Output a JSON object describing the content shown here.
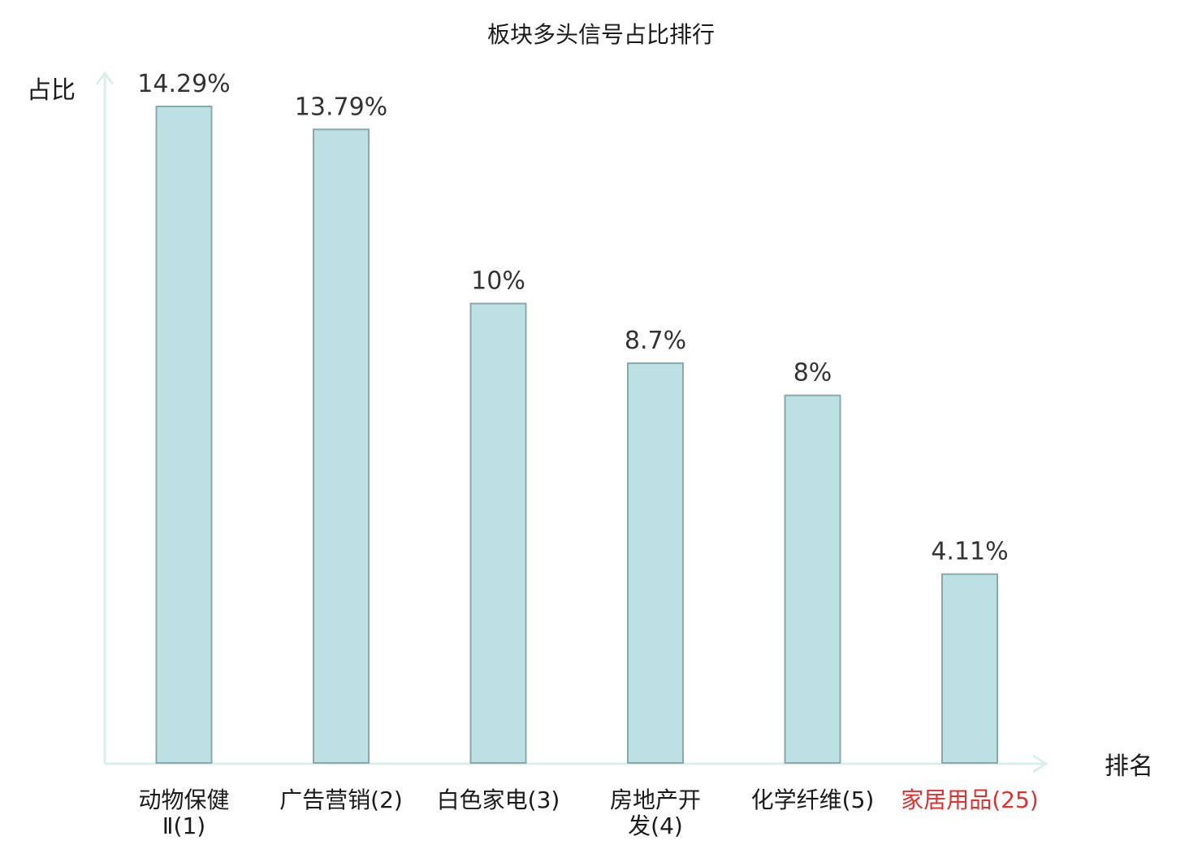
{
  "chart_data": {
    "type": "bar",
    "title": "板块多头信号占比排行",
    "ylabel": "占比",
    "xlabel": "排名",
    "categories": [
      {
        "name": "动物保健Ⅱ",
        "rank": "(1)",
        "highlight": false,
        "lines": [
          "动物保健",
          "Ⅱ(1)"
        ]
      },
      {
        "name": "广告营销",
        "rank": "(2)",
        "highlight": false,
        "lines": [
          "广告营销(2)"
        ]
      },
      {
        "name": "白色家电",
        "rank": "(3)",
        "highlight": false,
        "lines": [
          "白色家电(3)"
        ]
      },
      {
        "name": "房地产开发",
        "rank": "(4)",
        "highlight": false,
        "lines": [
          "房地产开",
          "发(4)"
        ]
      },
      {
        "name": "化学纤维",
        "rank": "(5)",
        "highlight": false,
        "lines": [
          "化学纤维(5)"
        ]
      },
      {
        "name": "家居用品",
        "rank": "(25)",
        "highlight": true,
        "lines": [
          "家居用品(25)"
        ]
      }
    ],
    "values": [
      14.29,
      13.79,
      10,
      8.7,
      8,
      4.11
    ],
    "value_labels": [
      "14.29%",
      "13.79%",
      "10%",
      "8.7%",
      "8%",
      "4.11%"
    ],
    "ylim": [
      0,
      14.8
    ],
    "grid": false,
    "colors": {
      "bar_fill": "#bde0e3",
      "bar_stroke": "#8aa8ab",
      "axis": "#d9efeb",
      "highlight_text": "#e03030",
      "text": "#1a1a1a"
    }
  }
}
